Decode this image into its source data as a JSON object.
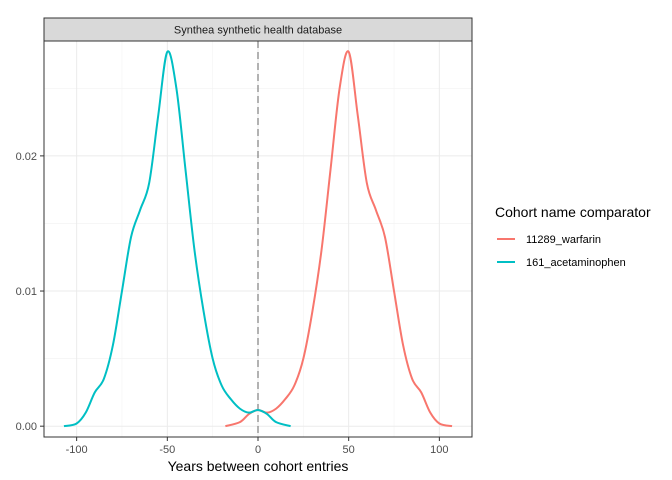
{
  "chart_data": {
    "type": "line",
    "facet_title": "Synthea synthetic health database",
    "xlabel": "Years between cohort entries",
    "ylabel": "",
    "xlim": [
      -118,
      118
    ],
    "ylim": [
      -0.0008,
      0.0285
    ],
    "x_ticks": [
      -100,
      -50,
      0,
      50,
      100
    ],
    "x_tick_labels": [
      "-100",
      "-50",
      "0",
      "50",
      "100"
    ],
    "y_ticks": [
      0,
      0.01,
      0.02
    ],
    "y_tick_labels": [
      "0.00",
      "0.01",
      "0.02"
    ],
    "grid": true,
    "reference_line_x": 0,
    "legend": {
      "title": "Cohort name comparator",
      "position": "right"
    },
    "series": [
      {
        "name": "11289_warfarin",
        "color": "#F8766D",
        "x": [
          -18,
          -10,
          -5,
          0,
          5,
          10,
          15,
          20,
          25,
          30,
          35,
          40,
          45,
          50,
          55,
          60,
          65,
          70,
          75,
          80,
          85,
          90,
          95,
          100,
          107
        ],
        "y": [
          0.0,
          0.0003,
          0.0009,
          0.0012,
          0.001,
          0.0013,
          0.002,
          0.003,
          0.005,
          0.0085,
          0.013,
          0.019,
          0.025,
          0.0277,
          0.023,
          0.018,
          0.016,
          0.014,
          0.01,
          0.006,
          0.0035,
          0.0025,
          0.001,
          0.0002,
          0.0
        ]
      },
      {
        "name": "161_acetaminophen",
        "color": "#00BFC4",
        "x": [
          -107,
          -100,
          -95,
          -90,
          -85,
          -80,
          -75,
          -70,
          -65,
          -60,
          -55,
          -50,
          -45,
          -40,
          -35,
          -30,
          -25,
          -20,
          -15,
          -10,
          -5,
          0,
          5,
          10,
          18
        ],
        "y": [
          0.0,
          0.0002,
          0.001,
          0.0025,
          0.0035,
          0.006,
          0.01,
          0.014,
          0.016,
          0.018,
          0.023,
          0.0277,
          0.025,
          0.019,
          0.013,
          0.0085,
          0.005,
          0.003,
          0.002,
          0.0013,
          0.001,
          0.0012,
          0.0009,
          0.0003,
          0.0
        ]
      }
    ]
  }
}
